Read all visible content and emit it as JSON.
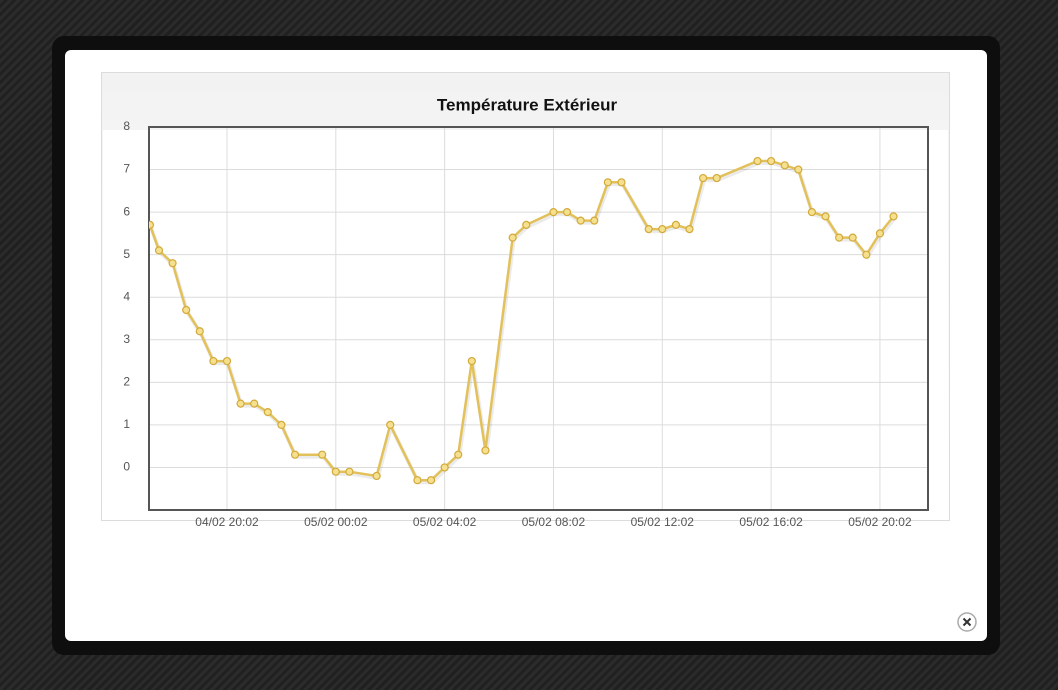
{
  "chart_data": {
    "type": "line",
    "title": "Température Extérieur",
    "x": [
      "04/02 17:12",
      "04/02 17:32",
      "04/02 18:02",
      "04/02 18:32",
      "04/02 19:02",
      "04/02 19:32",
      "04/02 20:02",
      "04/02 20:32",
      "04/02 21:02",
      "04/02 21:32",
      "04/02 22:02",
      "04/02 22:32",
      "04/02 23:32",
      "05/02 00:02",
      "05/02 00:32",
      "05/02 01:32",
      "05/02 02:02",
      "05/02 03:02",
      "05/02 03:32",
      "05/02 04:02",
      "05/02 04:32",
      "05/02 05:02",
      "05/02 05:32",
      "05/02 06:32",
      "05/02 07:02",
      "05/02 08:02",
      "05/02 08:32",
      "05/02 09:02",
      "05/02 09:32",
      "05/02 10:02",
      "05/02 10:32",
      "05/02 11:32",
      "05/02 12:02",
      "05/02 12:32",
      "05/02 13:02",
      "05/02 13:32",
      "05/02 14:02",
      "05/02 15:32",
      "05/02 16:02",
      "05/02 16:32",
      "05/02 17:02",
      "05/02 17:32",
      "05/02 18:02",
      "05/02 18:32",
      "05/02 19:02",
      "05/02 19:32",
      "05/02 20:02",
      "05/02 20:32"
    ],
    "values": [
      5.7,
      5.1,
      4.8,
      3.7,
      3.2,
      2.5,
      2.5,
      1.5,
      1.5,
      1.3,
      1.0,
      0.3,
      0.3,
      -0.1,
      -0.1,
      -0.2,
      1.0,
      -0.3,
      -0.3,
      0,
      0.3,
      2.5,
      0.4,
      5.4,
      5.7,
      6.0,
      6.0,
      5.8,
      5.8,
      6.7,
      6.7,
      5.6,
      5.6,
      5.7,
      5.6,
      6.8,
      6.8,
      7.2,
      7.2,
      7.1,
      7.0,
      6.0,
      5.9,
      5.4,
      5.4,
      5.0,
      5.5,
      5.9
    ],
    "color": "#e3c15a",
    "xlim": [
      "04/02 17:10",
      "05/02 21:48"
    ],
    "xticks": [
      "04/02 20:02",
      "05/02 00:02",
      "05/02 04:02",
      "05/02 08:02",
      "05/02 12:02",
      "05/02 16:02",
      "05/02 20:02"
    ],
    "ylim": [
      -1,
      8
    ],
    "yticks": [
      0,
      1,
      2,
      3,
      4,
      5,
      6,
      7,
      8
    ],
    "grid": true
  }
}
